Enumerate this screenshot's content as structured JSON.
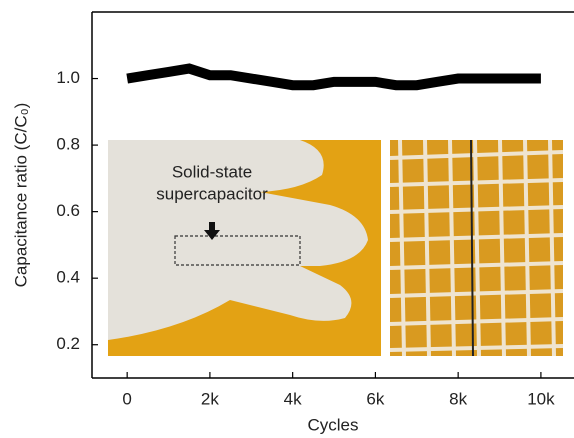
{
  "chart_data": {
    "type": "line",
    "xlabel": "Cycles",
    "ylabel": "Capacitance ratio (C/C₀)",
    "annotation": [
      "Solid-state",
      "supercapacitor"
    ],
    "x": [
      0,
      500,
      1000,
      1500,
      2000,
      2500,
      3000,
      3500,
      4000,
      4500,
      5000,
      5500,
      6000,
      6500,
      7000,
      7500,
      8000,
      8500,
      9000,
      9500,
      10000
    ],
    "series": [
      {
        "color": "#000000",
        "values": [
          1.0,
          1.01,
          1.02,
          1.03,
          1.01,
          1.01,
          1.0,
          0.99,
          0.98,
          0.98,
          0.99,
          0.99,
          0.99,
          0.98,
          0.98,
          0.99,
          1.0,
          1.0,
          1.0,
          1.0,
          1.0
        ]
      }
    ],
    "xlim": [
      -850,
      10800
    ],
    "ylim": [
      0.1,
      1.2
    ],
    "xticks": [
      0,
      {
        "value": 2000,
        "label": "2k"
      },
      {
        "value": 4000,
        "label": "4k"
      },
      {
        "value": 6000,
        "label": "6k"
      },
      {
        "value": 8000,
        "label": "8k"
      },
      {
        "value": 10000,
        "label": "10k"
      }
    ],
    "yticks": [
      0.2,
      0.4,
      0.6,
      0.8,
      {
        "value": 1,
        "label": "1.0"
      }
    ]
  }
}
